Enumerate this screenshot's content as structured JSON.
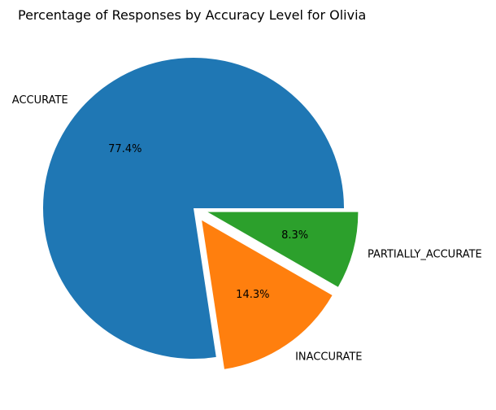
{
  "chart_data": {
    "type": "pie",
    "title": "Percentage of Responses by Accuracy Level for Olivia",
    "categories": [
      "ACCURATE",
      "INACCURATE",
      "PARTIALLY_ACCURATE"
    ],
    "values": [
      77.4,
      14.3,
      8.3
    ],
    "value_labels": [
      "77.4%",
      "14.3%",
      "8.3%"
    ],
    "colors": [
      "#1f77b4",
      "#ff7f0e",
      "#2ca02c"
    ],
    "exploded": [
      false,
      true,
      true
    ],
    "legend": "none"
  }
}
